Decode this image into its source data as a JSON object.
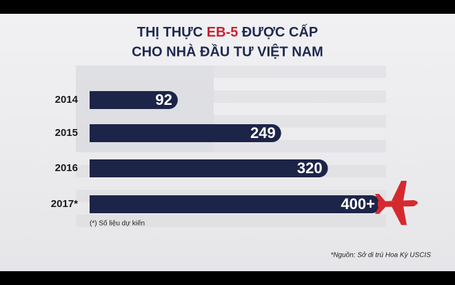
{
  "chart_data": {
    "type": "bar",
    "orientation": "horizontal",
    "title": [
      [
        "THỊ THỰC",
        "EB-5",
        "ĐƯỢC CẤP"
      ],
      [
        "CHO NHÀ ĐẦU TƯ VIỆT NAM"
      ]
    ],
    "categories": [
      "2014",
      "2015",
      "2016",
      "2017*"
    ],
    "values": [
      92,
      249,
      320,
      400
    ],
    "value_labels": [
      "92",
      "249",
      "320",
      "400+"
    ],
    "color": "#1c2448",
    "annotations": [
      "(*) Số liệu dự kiến",
      "*Nguồn: Sở di trú Hoa Kỳ USCIS"
    ]
  }
}
